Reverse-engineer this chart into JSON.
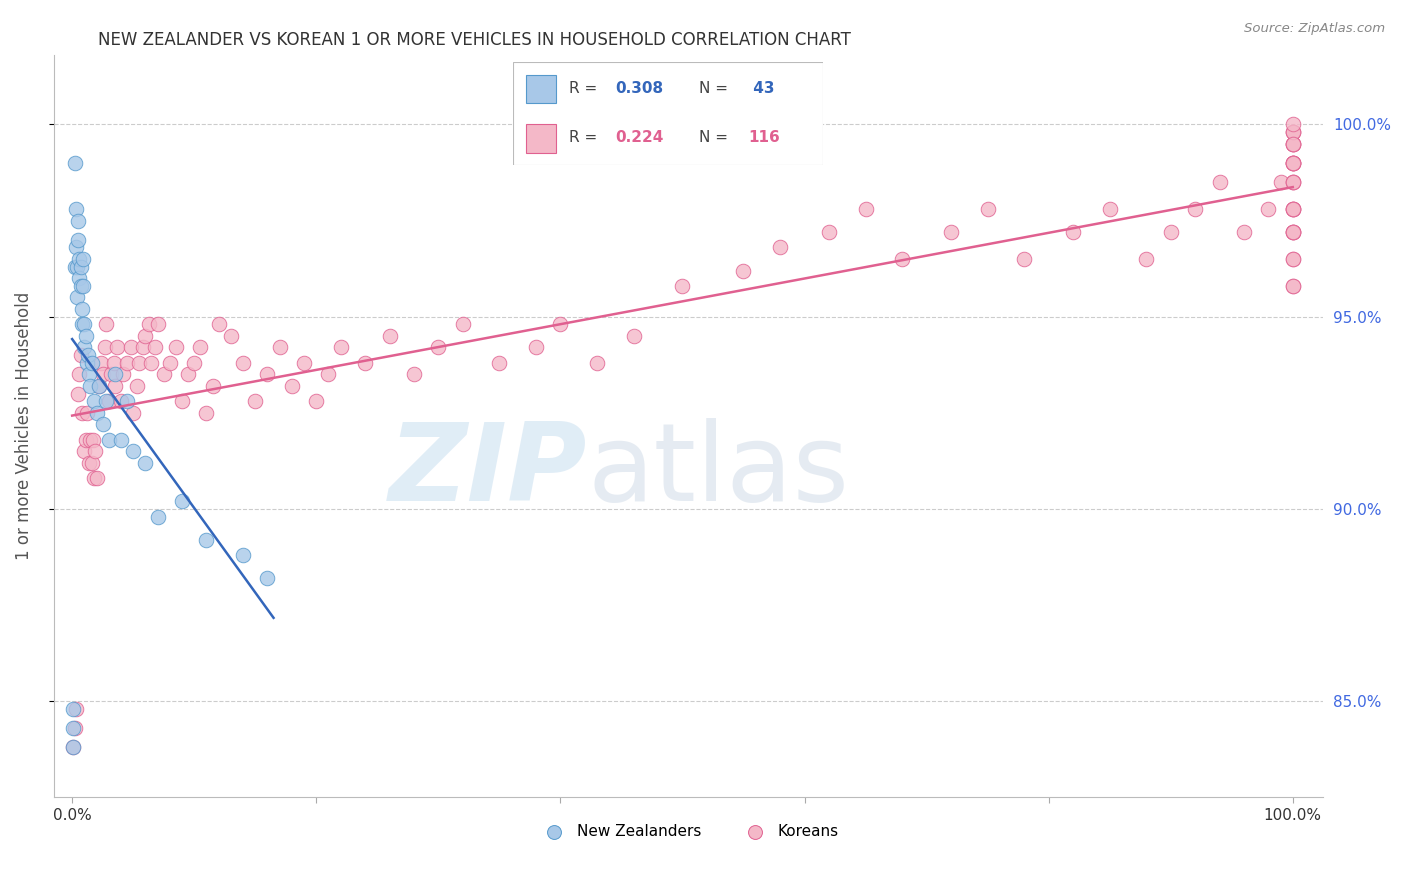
{
  "title": "NEW ZEALANDER VS KOREAN 1 OR MORE VEHICLES IN HOUSEHOLD CORRELATION CHART",
  "source": "Source: ZipAtlas.com",
  "ylabel": "1 or more Vehicles in Household",
  "legend_nz_label": "New Zealanders",
  "legend_kr_label": "Koreans",
  "nz_color": "#a8c8e8",
  "kr_color": "#f4b8c8",
  "nz_edge_color": "#5599cc",
  "kr_edge_color": "#e06090",
  "nz_line_color": "#3366bb",
  "kr_line_color": "#e06090",
  "background_color": "#ffffff",
  "grid_color": "#cccccc",
  "title_color": "#333333",
  "axis_label_color": "#555555",
  "right_tick_color": "#4169e1",
  "ylim_low": 0.825,
  "ylim_high": 1.018,
  "xlim_low": -0.015,
  "xlim_high": 1.025,
  "nz_R": "0.308",
  "nz_N": "43",
  "kr_R": "0.224",
  "kr_N": "116",
  "nz_x": [
    0.001,
    0.001,
    0.001,
    0.002,
    0.002,
    0.003,
    0.003,
    0.004,
    0.004,
    0.005,
    0.005,
    0.006,
    0.006,
    0.007,
    0.007,
    0.008,
    0.008,
    0.009,
    0.009,
    0.01,
    0.01,
    0.011,
    0.012,
    0.013,
    0.014,
    0.015,
    0.016,
    0.018,
    0.02,
    0.022,
    0.025,
    0.028,
    0.03,
    0.035,
    0.04,
    0.045,
    0.05,
    0.06,
    0.07,
    0.09,
    0.11,
    0.14,
    0.16
  ],
  "nz_y": [
    0.838,
    0.843,
    0.848,
    0.963,
    0.99,
    0.968,
    0.978,
    0.955,
    0.963,
    0.97,
    0.975,
    0.96,
    0.965,
    0.958,
    0.963,
    0.948,
    0.952,
    0.958,
    0.965,
    0.942,
    0.948,
    0.945,
    0.938,
    0.94,
    0.935,
    0.932,
    0.938,
    0.928,
    0.925,
    0.932,
    0.922,
    0.928,
    0.918,
    0.935,
    0.918,
    0.928,
    0.915,
    0.912,
    0.898,
    0.902,
    0.892,
    0.888,
    0.882
  ],
  "kr_x": [
    0.001,
    0.002,
    0.003,
    0.005,
    0.006,
    0.007,
    0.008,
    0.01,
    0.011,
    0.012,
    0.014,
    0.015,
    0.016,
    0.017,
    0.018,
    0.019,
    0.02,
    0.022,
    0.024,
    0.025,
    0.027,
    0.028,
    0.03,
    0.032,
    0.034,
    0.035,
    0.037,
    0.04,
    0.042,
    0.045,
    0.048,
    0.05,
    0.053,
    0.055,
    0.058,
    0.06,
    0.063,
    0.065,
    0.068,
    0.07,
    0.075,
    0.08,
    0.085,
    0.09,
    0.095,
    0.1,
    0.105,
    0.11,
    0.115,
    0.12,
    0.13,
    0.14,
    0.15,
    0.16,
    0.17,
    0.18,
    0.19,
    0.2,
    0.21,
    0.22,
    0.24,
    0.26,
    0.28,
    0.3,
    0.32,
    0.35,
    0.38,
    0.4,
    0.43,
    0.46,
    0.5,
    0.55,
    0.58,
    0.62,
    0.65,
    0.68,
    0.72,
    0.75,
    0.78,
    0.82,
    0.85,
    0.88,
    0.9,
    0.92,
    0.94,
    0.96,
    0.98,
    0.99,
    1.0,
    1.0,
    1.0,
    1.0,
    1.0,
    1.0,
    1.0,
    1.0,
    1.0,
    1.0,
    1.0,
    1.0,
    1.0,
    1.0,
    1.0,
    1.0,
    1.0,
    1.0,
    1.0,
    1.0,
    1.0,
    1.0,
    1.0,
    1.0,
    1.0,
    1.0,
    1.0,
    1.0
  ],
  "kr_y": [
    0.838,
    0.843,
    0.848,
    0.93,
    0.935,
    0.94,
    0.925,
    0.915,
    0.918,
    0.925,
    0.912,
    0.918,
    0.912,
    0.918,
    0.908,
    0.915,
    0.908,
    0.932,
    0.938,
    0.935,
    0.942,
    0.948,
    0.928,
    0.935,
    0.938,
    0.932,
    0.942,
    0.928,
    0.935,
    0.938,
    0.942,
    0.925,
    0.932,
    0.938,
    0.942,
    0.945,
    0.948,
    0.938,
    0.942,
    0.948,
    0.935,
    0.938,
    0.942,
    0.928,
    0.935,
    0.938,
    0.942,
    0.925,
    0.932,
    0.948,
    0.945,
    0.938,
    0.928,
    0.935,
    0.942,
    0.932,
    0.938,
    0.928,
    0.935,
    0.942,
    0.938,
    0.945,
    0.935,
    0.942,
    0.948,
    0.938,
    0.942,
    0.948,
    0.938,
    0.945,
    0.958,
    0.962,
    0.968,
    0.972,
    0.978,
    0.965,
    0.972,
    0.978,
    0.965,
    0.972,
    0.978,
    0.965,
    0.972,
    0.978,
    0.985,
    0.972,
    0.978,
    0.985,
    0.99,
    0.978,
    0.972,
    0.965,
    0.958,
    0.972,
    0.978,
    0.985,
    0.99,
    0.995,
    0.998,
    0.998,
    0.995,
    0.99,
    0.985,
    0.978,
    0.972,
    0.965,
    0.958,
    0.972,
    0.978,
    0.985,
    0.99,
    0.995,
    0.998,
    1.0,
    0.995,
    0.99
  ]
}
